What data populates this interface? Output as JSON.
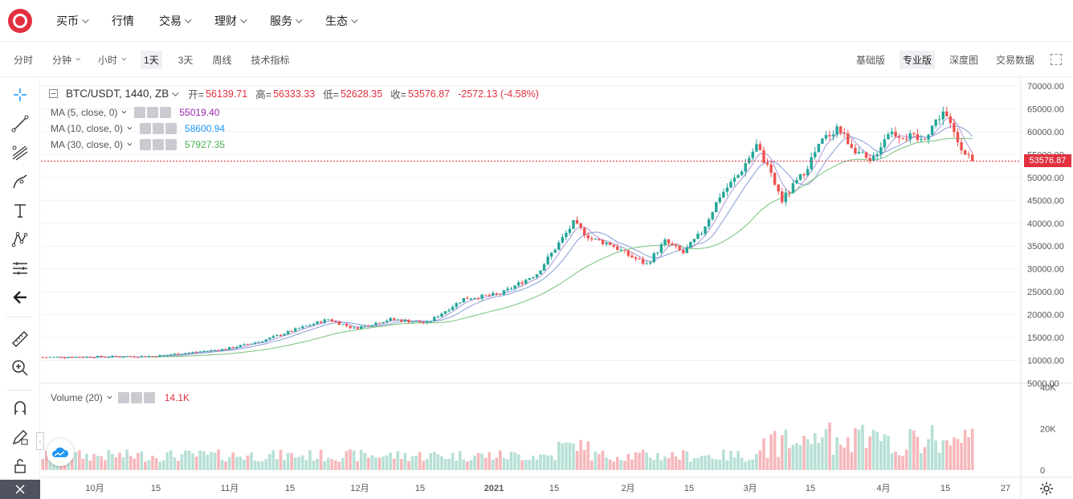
{
  "nav": {
    "items": [
      {
        "label": "买币",
        "dropdown": true
      },
      {
        "label": "行情",
        "dropdown": false
      },
      {
        "label": "交易",
        "dropdown": true
      },
      {
        "label": "理财",
        "dropdown": true
      },
      {
        "label": "服务",
        "dropdown": true
      },
      {
        "label": "生态",
        "dropdown": true
      }
    ]
  },
  "toolbar": {
    "intervals": [
      {
        "label": "分时",
        "dropdown": false,
        "active": false
      },
      {
        "label": "分钟",
        "dropdown": true,
        "active": false
      },
      {
        "label": "小时",
        "dropdown": true,
        "active": false
      },
      {
        "label": "1天",
        "dropdown": false,
        "active": true
      },
      {
        "label": "3天",
        "dropdown": false,
        "active": false
      },
      {
        "label": "周线",
        "dropdown": false,
        "active": false
      },
      {
        "label": "技术指标",
        "dropdown": false,
        "active": false
      }
    ],
    "views": [
      {
        "label": "基础版",
        "active": false
      },
      {
        "label": "专业版",
        "active": true
      },
      {
        "label": "深度图",
        "active": false
      },
      {
        "label": "交易数据",
        "active": false
      }
    ]
  },
  "legend": {
    "symbol": "BTC/USDT, 1440, ZB",
    "open_label": "开=",
    "open": "56139.71",
    "high_label": "高=",
    "high": "56333.33",
    "low_label": "低=",
    "low": "52628.35",
    "close_label": "收=",
    "close": "53576.87",
    "change": "-2572.13 (-4.58%)"
  },
  "ma": [
    {
      "label": "MA (5, close, 0)",
      "value": "55019.40",
      "color": "#9c27b0"
    },
    {
      "label": "MA (10, close, 0)",
      "value": "58600.94",
      "color": "#2196f3"
    },
    {
      "label": "MA (30, close, 0)",
      "value": "57927.35",
      "color": "#4caf50"
    }
  ],
  "volume_legend": {
    "label": "Volume (20)",
    "value": "14.1K"
  },
  "price_tag": "53576.87",
  "colors": {
    "up": "#26a69a",
    "down": "#ef5350",
    "accent": "#e2303f"
  },
  "chart_data": {
    "type": "candlestick",
    "y_axis_ticks": [
      "70000.00",
      "65000.00",
      "60000.00",
      "55000.00",
      "50000.00",
      "45000.00",
      "40000.00",
      "35000.00",
      "30000.00",
      "25000.00",
      "20000.00",
      "15000.00",
      "10000.00",
      "5000.00"
    ],
    "ylim": [
      5000,
      70000
    ],
    "volume_axis_ticks": [
      "40K",
      "20K",
      "0"
    ],
    "x_axis_ticks": [
      "10月",
      "15",
      "11月",
      "15",
      "12月",
      "15",
      "2021",
      "15",
      "2月",
      "15",
      "3月",
      "15",
      "4月",
      "15",
      "27"
    ],
    "last_price": 53576.87
  },
  "icons": {
    "tools": [
      "crosshair-icon",
      "trend-line-icon",
      "pitchfork-icon",
      "brush-icon",
      "text-icon",
      "pattern-icon",
      "prediction-icon",
      "back-arrow-icon",
      "ruler-icon",
      "zoom-in-icon",
      "magnet-icon",
      "lock-pencil-icon",
      "unlock-icon"
    ]
  }
}
